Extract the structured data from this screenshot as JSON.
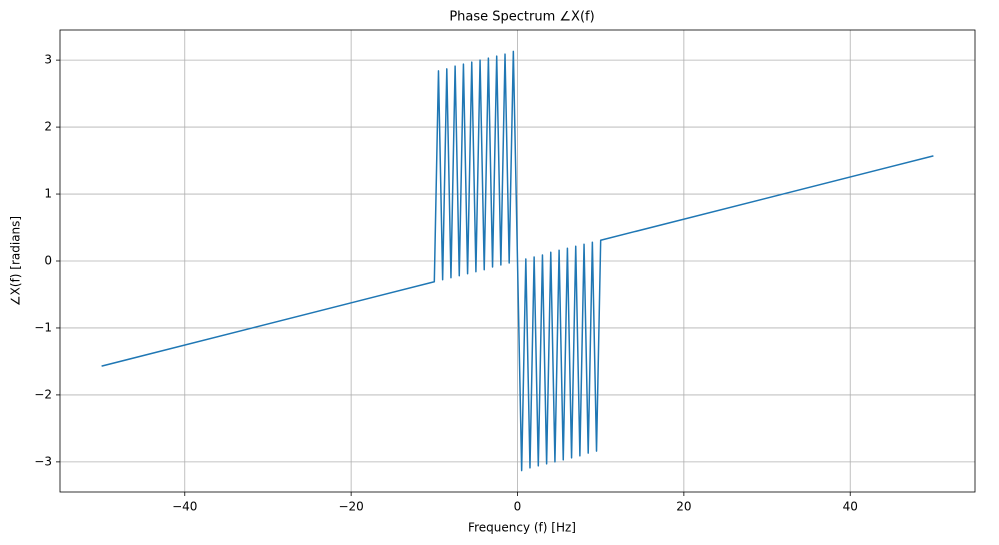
{
  "chart_data": {
    "type": "line",
    "title": "Phase Spectrum ∠X(f)",
    "x_label": "Frequency (f) [Hz]",
    "y_label": "∠X(f) [radians]",
    "x": [
      -50,
      -10,
      -9.5,
      -9,
      -8.5,
      -8,
      -7.5,
      -7,
      -6.5,
      -6,
      -5.5,
      -5,
      -4.5,
      -4,
      -3.5,
      -3,
      -2.5,
      -2,
      -1.5,
      -1,
      -0.5,
      0,
      0.5,
      1,
      1.5,
      2,
      2.5,
      3,
      3.5,
      4,
      4.5,
      5,
      5.5,
      6,
      6.5,
      7,
      7.5,
      8,
      8.5,
      9,
      9.5,
      10,
      50
    ],
    "series": [
      {
        "name": "∠X(f)",
        "color": "#1f77b4",
        "values": [
          -1.57,
          -0.31,
          2.84,
          -0.28,
          2.87,
          -0.25,
          2.91,
          -0.22,
          2.94,
          -0.19,
          2.97,
          -0.16,
          3.0,
          -0.13,
          3.03,
          -0.09,
          3.06,
          -0.06,
          3.09,
          -0.03,
          3.13,
          0,
          -3.13,
          0.03,
          -3.09,
          0.06,
          -3.06,
          0.09,
          -3.03,
          0.13,
          -3.0,
          0.16,
          -2.97,
          0.19,
          -2.94,
          0.22,
          -2.91,
          0.25,
          -2.87,
          0.28,
          -2.84,
          0.31,
          1.57
        ]
      }
    ],
    "xlim": [
      -55,
      55
    ],
    "ylim": [
      -3.45,
      3.45
    ],
    "xticks": [
      {
        "value": -40,
        "label": "−40"
      },
      {
        "value": -20,
        "label": "−20"
      },
      0,
      20,
      40
    ],
    "yticks": [
      {
        "value": -3,
        "label": "−3"
      },
      {
        "value": -2,
        "label": "−2"
      },
      {
        "value": -1,
        "label": "−1"
      },
      0,
      1,
      2,
      3
    ],
    "grid": true
  }
}
